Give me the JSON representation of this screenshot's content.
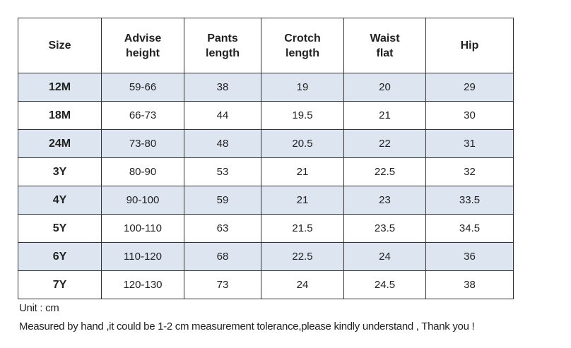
{
  "table": {
    "header": [
      "Size",
      "Advise\nheight",
      "Pants\nlength",
      "Crotch\nlength",
      "Waist\nflat",
      "Hip"
    ],
    "rows": [
      [
        "12M",
        "59-66",
        38,
        19,
        20,
        29
      ],
      [
        "18M",
        "66-73",
        44,
        19.5,
        21,
        30
      ],
      [
        "24M",
        "73-80",
        48,
        20.5,
        22,
        31
      ],
      [
        "3Y",
        "80-90",
        53,
        21,
        22.5,
        32
      ],
      [
        "4Y",
        "90-100",
        59,
        21,
        23,
        33.5
      ],
      [
        "5Y",
        "100-110",
        63,
        21.5,
        23.5,
        34.5
      ],
      [
        "6Y",
        "110-120",
        68,
        22.5,
        24,
        36
      ],
      [
        "7Y",
        "120-130",
        73,
        24,
        24.5,
        38
      ]
    ]
  },
  "notes": [
    "Unit : cm",
    "Measured by hand ,it could be 1-2 cm measurement tolerance,please kindly understand , Thank you !"
  ]
}
